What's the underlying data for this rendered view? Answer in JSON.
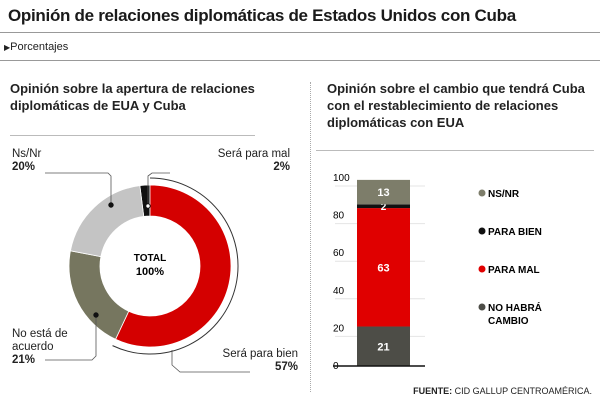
{
  "header": {
    "title": "Opinión de relaciones diplomáticas de Estados Unidos con Cuba",
    "unit_label": "Porcentajes",
    "unit_icon": "triangle-right-icon"
  },
  "footer": {
    "source_label": "FUENTE:",
    "source": "CID GALLUP CENTROAMÉRICA."
  },
  "chart_data": [
    {
      "type": "pie",
      "title": "Opinión sobre la apertura de relaciones diplomáticas de EUA y Cuba",
      "center_label": "TOTAL",
      "center_value": "100%",
      "slices": [
        {
          "name": "Será para mal",
          "value": 2,
          "label": "2%",
          "color": "#111111"
        },
        {
          "name": "Será para bien",
          "value": 57,
          "label": "57%",
          "color": "#d40000"
        },
        {
          "name": "No está de acuerdo",
          "value": 21,
          "label": "21%",
          "color": "#76765f"
        },
        {
          "name": "Ns/Nr",
          "value": 20,
          "label": "20%",
          "color": "#c4c4c4"
        }
      ]
    },
    {
      "type": "bar",
      "stacked": true,
      "title": "Opinión sobre el cambio que tendrá Cuba con el restablecimiento de relaciones diplomáticas con EUA",
      "ylim": [
        0,
        100
      ],
      "yticks": [
        "0",
        "20",
        "40",
        "60",
        "80",
        "100"
      ],
      "series": [
        {
          "name": "NO HABRÁ CAMBIO",
          "value": 21,
          "color": "#4d4d47"
        },
        {
          "name": "PARA MAL",
          "value": 63,
          "color": "#e00000"
        },
        {
          "name": "PARA BIEN",
          "value": 2,
          "color": "#111111"
        },
        {
          "name": "NS/NR",
          "value": 13,
          "color": "#7d7d6a"
        }
      ],
      "legend_order": [
        "NS/NR",
        "PARA BIEN",
        "PARA MAL",
        "NO HABRÁ CAMBIO"
      ],
      "legend": "right"
    }
  ]
}
